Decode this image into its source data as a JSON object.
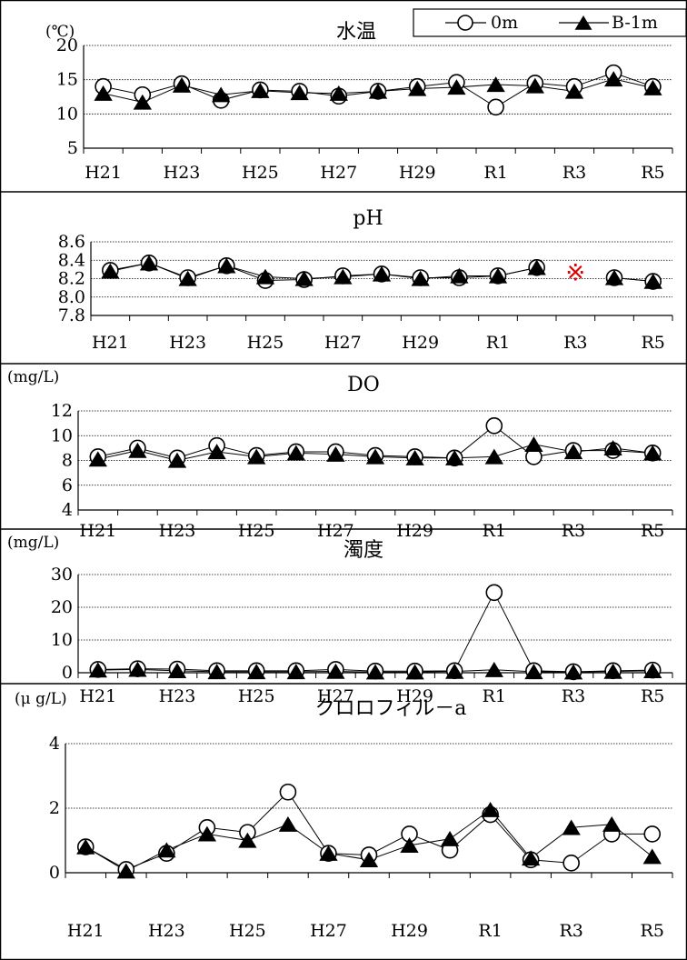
{
  "chart_data": [
    {
      "type": "line",
      "title": "水温",
      "unit": "(℃)",
      "categories": [
        "H21",
        "H22",
        "H23",
        "H24",
        "H25",
        "H26",
        "H27",
        "H28",
        "H29",
        "H30",
        "R1",
        "R2",
        "R3",
        "R4",
        "R5"
      ],
      "x_tick_labels": [
        "H21",
        "H23",
        "H25",
        "H27",
        "H29",
        "R1",
        "R3",
        "R5"
      ],
      "ylim": [
        5,
        20
      ],
      "yticks": [
        5,
        10,
        15,
        20
      ],
      "grid": true,
      "legend": "top-right",
      "series": [
        {
          "name": "0m",
          "marker": "circle",
          "values": [
            14.0,
            12.8,
            14.4,
            12.0,
            13.5,
            13.3,
            12.6,
            13.3,
            14.0,
            14.6,
            11.0,
            14.5,
            14.0,
            16.0,
            14.0
          ]
        },
        {
          "name": "B-1m",
          "marker": "triangle",
          "values": [
            13.0,
            11.7,
            14.2,
            12.8,
            13.4,
            13.1,
            13.0,
            13.3,
            13.7,
            13.9,
            14.3,
            14.1,
            13.3,
            15.1,
            13.8
          ]
        }
      ]
    },
    {
      "type": "line",
      "title": "pH",
      "unit": "",
      "categories": [
        "H21",
        "H22",
        "H23",
        "H24",
        "H25",
        "H26",
        "H27",
        "H28",
        "H29",
        "H30",
        "R1",
        "R2",
        "R3",
        "R4",
        "R5"
      ],
      "x_tick_labels": [
        "H21",
        "H23",
        "H25",
        "H27",
        "H29",
        "R1",
        "R3",
        "R5"
      ],
      "ylim": [
        7.8,
        8.6
      ],
      "yticks": [
        7.8,
        8.0,
        8.2,
        8.4,
        8.6
      ],
      "ytick_decimals": 1,
      "grid": true,
      "annotation": {
        "text": "※",
        "category": "R3",
        "y": 8.28
      },
      "series": [
        {
          "name": "0m",
          "marker": "circle",
          "values": [
            8.29,
            8.37,
            8.21,
            8.34,
            8.18,
            8.19,
            8.23,
            8.25,
            8.21,
            8.21,
            8.23,
            8.32,
            null,
            8.21,
            8.17
          ]
        },
        {
          "name": "B-1m",
          "marker": "triangle",
          "values": [
            8.28,
            8.37,
            8.2,
            8.34,
            8.22,
            8.2,
            8.22,
            8.25,
            8.2,
            8.23,
            8.23,
            8.32,
            null,
            8.21,
            8.17
          ]
        }
      ]
    },
    {
      "type": "line",
      "title": "DO",
      "unit": "(mg/L)",
      "categories": [
        "H21",
        "H22",
        "H23",
        "H24",
        "H25",
        "H26",
        "H27",
        "H28",
        "H29",
        "H30",
        "R1",
        "R2",
        "R3",
        "R4",
        "R5"
      ],
      "x_tick_labels": [
        "H21",
        "H23",
        "H25",
        "H27",
        "H29",
        "R1",
        "R3",
        "R5"
      ],
      "ylim": [
        4,
        12
      ],
      "yticks": [
        4,
        6,
        8,
        10,
        12
      ],
      "grid": true,
      "series": [
        {
          "name": "0m",
          "marker": "circle",
          "values": [
            8.3,
            9.0,
            8.2,
            9.2,
            8.4,
            8.7,
            8.7,
            8.4,
            8.3,
            8.2,
            10.8,
            8.3,
            8.8,
            8.8,
            8.6
          ]
        },
        {
          "name": "B-1m",
          "marker": "triangle",
          "values": [
            8.1,
            8.8,
            8.0,
            8.7,
            8.3,
            8.6,
            8.5,
            8.3,
            8.2,
            8.2,
            8.3,
            9.3,
            8.7,
            9.0,
            8.6
          ]
        }
      ]
    },
    {
      "type": "line",
      "title": "濁度",
      "unit": "(mg/L)",
      "categories": [
        "H21",
        "H22",
        "H23",
        "H24",
        "H25",
        "H26",
        "H27",
        "H28",
        "H29",
        "H30",
        "R1",
        "R2",
        "R3",
        "R4",
        "R5"
      ],
      "x_tick_labels": [
        "H21",
        "H23",
        "H25",
        "H27",
        "H29",
        "R1",
        "R3",
        "R5"
      ],
      "ylim": [
        0,
        30
      ],
      "yticks": [
        0,
        10,
        20,
        30
      ],
      "grid": true,
      "series": [
        {
          "name": "0m",
          "marker": "circle",
          "values": [
            1.0,
            1.2,
            1.1,
            0.6,
            0.6,
            0.6,
            1.0,
            0.5,
            0.5,
            0.6,
            24.5,
            0.6,
            0.3,
            0.6,
            0.8
          ]
        },
        {
          "name": "B-1m",
          "marker": "triangle",
          "values": [
            0.8,
            1.0,
            0.6,
            0.3,
            0.3,
            0.3,
            0.4,
            0.2,
            0.2,
            0.4,
            0.9,
            0.3,
            0.2,
            0.4,
            0.6
          ]
        }
      ]
    },
    {
      "type": "line",
      "title": "クロロフィル－a",
      "unit": "(μ g/L)",
      "categories": [
        "H21",
        "H22",
        "H23",
        "H24",
        "H25",
        "H26",
        "H27",
        "H28",
        "H29",
        "H30",
        "R1",
        "R2",
        "R3",
        "R4",
        "R5"
      ],
      "x_tick_labels": [
        "H21",
        "H23",
        "H25",
        "H27",
        "H29",
        "R1",
        "R3",
        "R5"
      ],
      "ylim": [
        0,
        4
      ],
      "yticks": [
        0,
        2,
        4
      ],
      "grid": true,
      "series": [
        {
          "name": "0m",
          "marker": "circle",
          "values": [
            0.8,
            0.1,
            0.6,
            1.4,
            1.25,
            2.5,
            0.6,
            0.55,
            1.2,
            0.7,
            1.8,
            0.4,
            0.3,
            1.2,
            1.2
          ]
        },
        {
          "name": "B-1m",
          "marker": "triangle",
          "values": [
            0.8,
            0.05,
            0.7,
            1.2,
            1.0,
            1.5,
            0.6,
            0.4,
            0.85,
            1.05,
            1.95,
            0.45,
            1.4,
            1.5,
            0.5
          ]
        }
      ]
    }
  ]
}
